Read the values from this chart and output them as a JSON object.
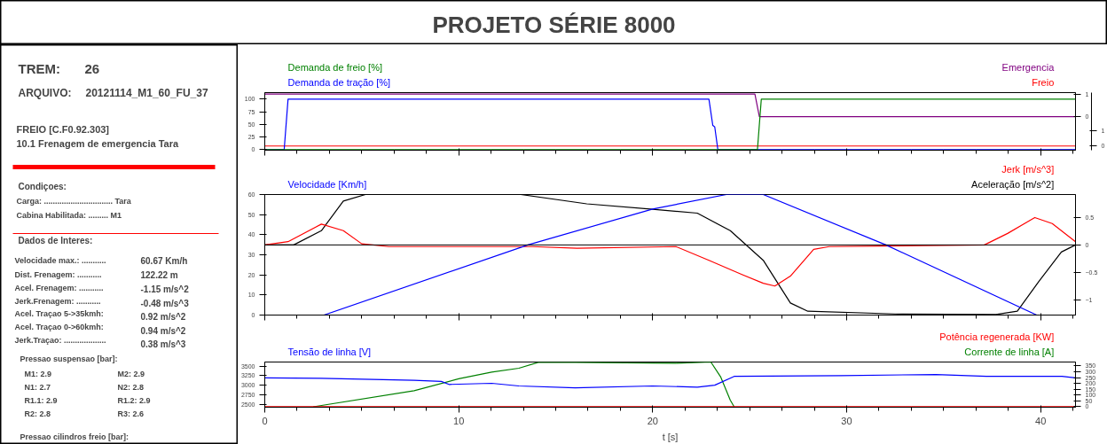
{
  "chart_data": [
    {
      "type": "other",
      "title": "PROJETO SÉRIE 8000",
      "annotations": [
        "TREM:",
        "26",
        "ARQUIVO:",
        "20121114_M1_60_FU_37",
        "FREIO [C.F0.92.303]",
        "10.1 Frenagem de emergencia Tara",
        "Condiçoes:",
        "Carga:  ............................... Tara",
        "Cabina Habilitada: ......... M1",
        "Dados de Interes:",
        "Velocidade max.:  ...........",
        "60.67   Km/h",
        "Dist. Frenagem:    ...........",
        "122.22  m",
        "Acel. Frenagem:    ...........",
        "-1.15 m/s^2",
        "Jerk.Frenagem:     ...........",
        "-0.48 m/s^3",
        "Acel. Traçao 5->35kmh:",
        "0.92 m/s^2",
        "Acel. Traçao 0->60kmh:",
        "0.94 m/s^2",
        "Jerk.Traçao:  ...................",
        "0.38 m/s^3",
        "Pressao suspensao [bar]:",
        "M1:   2.9",
        "M2:   2.9",
        "N1:   2.7",
        "N2:   2.8",
        "R1.1: 2.9",
        "R1.2: 2.9",
        "R2:   2.8",
        "R3:   2.6",
        "Pressao cilindros freio [bar]:"
      ]
    },
    {
      "type": "line",
      "tick_labels": "y",
      "xlim": [
        0,
        41.8
      ],
      "xticks": [
        0,
        10,
        20,
        30,
        40
      ],
      "ylim": [
        -1,
        113
      ],
      "yticks": [
        0,
        25,
        50,
        75,
        100
      ],
      "y2lim": [
        -1.48,
        1.06
      ],
      "y2ticks": [
        0,
        1
      ],
      "y3lim": [
        -0.27,
        3.43
      ],
      "y3ticks": [
        0,
        1
      ],
      "series": [
        {
          "name": "Demanda de freio [%]",
          "color": "#008000",
          "x": [
            0,
            25.4,
            25.6,
            41.8
          ],
          "values": [
            0,
            0,
            100,
            100
          ]
        },
        {
          "name": "Demanda de tração [%]",
          "color": "#0000ff",
          "x": [
            0,
            1.0,
            1.2,
            22.9,
            23.1,
            23.2,
            23.36,
            41.8
          ],
          "values": [
            0,
            0,
            100,
            100,
            48,
            45,
            0,
            0
          ]
        },
        {
          "name": "Emergencia",
          "color": "#800080",
          "axis": "y2",
          "x": [
            0,
            25.27,
            25.5,
            41.8
          ],
          "values": [
            1,
            1,
            0,
            0
          ]
        },
        {
          "name": "Freio",
          "color": "#ff0000",
          "axis": "y3",
          "x": [
            0,
            41.8
          ],
          "values": [
            0,
            0
          ]
        }
      ]
    },
    {
      "type": "line",
      "tick_labels": "y",
      "xlim": [
        0,
        41.8
      ],
      "xticks": [
        0,
        10,
        20,
        30,
        40
      ],
      "ylim": [
        0,
        60
      ],
      "yticks": [
        0,
        10,
        20,
        30,
        40,
        50,
        60
      ],
      "y2lim": [
        -1.28,
        0.92
      ],
      "y2ticks": [
        -1,
        -0.5,
        0,
        0.5
      ],
      "ref_lines": [
        {
          "axis": "y2",
          "value": 0,
          "color": "#000000"
        }
      ],
      "series": [
        {
          "name": "Velocidade [Km/h]",
          "color": "#0000ff",
          "x": [
            0,
            3.05,
            13.6,
            20.0,
            23.8,
            25.7,
            32.0,
            39.8,
            41.8
          ],
          "values": [
            0,
            0,
            35,
            52.8,
            60,
            60,
            35,
            0,
            0
          ]
        },
        {
          "name": "Jerk [m/s^3]",
          "color": "#ff0000",
          "axis": "y2",
          "x": [
            0,
            1.2,
            2.92,
            4.05,
            5.0,
            6.4,
            13.8,
            16.1,
            21.2,
            22.9,
            24.6,
            25.7,
            26.3,
            27.1,
            28.3,
            29.1,
            37.1,
            38.3,
            39.7,
            40.6,
            41.8
          ],
          "values": [
            0,
            0.06,
            0.38,
            0.26,
            0.02,
            -0.03,
            -0.03,
            -0.06,
            -0.03,
            -0.28,
            -0.54,
            -0.7,
            -0.75,
            -0.57,
            -0.08,
            -0.03,
            0,
            0.21,
            0.5,
            0.39,
            0.06
          ]
        },
        {
          "name": "Aceleração [m/s^2]",
          "color": "#000000",
          "axis": "y2",
          "x": [
            0,
            1.49,
            2.92,
            4.05,
            5.19,
            13.2,
            16.6,
            20.0,
            22.3,
            24.0,
            25.7,
            27.1,
            28.0,
            32.5,
            37.7,
            38.8,
            39.9,
            41.07,
            41.8
          ],
          "values": [
            0,
            0,
            0.26,
            0.8,
            0.92,
            0.92,
            0.75,
            0.65,
            0.58,
            0.26,
            -0.28,
            -1.06,
            -1.21,
            -1.26,
            -1.27,
            -1.21,
            -0.67,
            -0.13,
            0
          ]
        }
      ]
    },
    {
      "type": "line",
      "xlabel": "t [s]",
      "xlim": [
        0,
        41.8
      ],
      "xticks": [
        0,
        10,
        20,
        30,
        40
      ],
      "ylim": [
        2425,
        3605
      ],
      "yticks": [
        2500,
        2750,
        3000,
        3250,
        3500
      ],
      "y2lim": [
        -4,
        383
      ],
      "y2ticks": [
        0,
        50,
        100,
        150,
        200,
        250,
        300,
        350
      ],
      "series": [
        {
          "name": "Tensão de linha [V]",
          "color": "#0000ff",
          "x": [
            0,
            2.9,
            7.7,
            9.1,
            9.5,
            11.7,
            13.1,
            16.0,
            20.0,
            22.3,
            23.2,
            24.2,
            29.7,
            34.6,
            37.2,
            41.1,
            41.8
          ],
          "values": [
            3190,
            3180,
            3130,
            3100,
            3020,
            3050,
            2980,
            2930,
            2980,
            2950,
            3000,
            3230,
            3250,
            3280,
            3230,
            3230,
            3190
          ]
        },
        {
          "name": "Potência regenerada [KW]",
          "color": "#ff0000",
          "axis": "y2",
          "x": [
            0,
            41.8
          ],
          "values": [
            0,
            0
          ]
        },
        {
          "name": "Corrente de linha [A]",
          "color": "#008000",
          "axis": "y2",
          "x": [
            2.5,
            7.7,
            10.0,
            11.7,
            13.1,
            14.1,
            16.0,
            21.2,
            23.0,
            23.5,
            24.0,
            24.2
          ],
          "values": [
            0,
            137,
            240,
            297,
            330,
            380,
            380,
            373,
            383,
            257,
            57,
            0
          ]
        }
      ]
    }
  ]
}
